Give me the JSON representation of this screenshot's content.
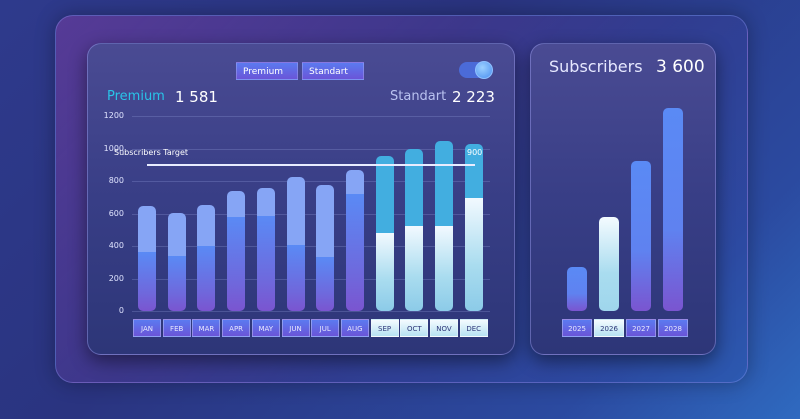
{
  "left_panel": {
    "segment_buttons": [
      "Premium",
      "Standart"
    ],
    "toggle_on": true,
    "premium_label": "Premium",
    "premium_value": "1 581",
    "standart_label": "Standart",
    "standart_value": "2 223",
    "target_label": "Subscribers Target",
    "target_value_label": "900"
  },
  "right_panel": {
    "title": "Subscribers",
    "total": "3 600"
  },
  "colors": {
    "premium_accent": "#29c3e8",
    "bar_blue": "#5a8af5",
    "bar_purple": "#7a55d0",
    "bar_light": "#bfe6f4",
    "bar_cyan": "#42aee0"
  },
  "chart_data": [
    {
      "type": "bar",
      "stacked": true,
      "categories": [
        "JAN",
        "FEB",
        "MAR",
        "APR",
        "MAY",
        "JUN",
        "JUL",
        "AUG",
        "SEP",
        "OCT",
        "NOV",
        "DEC"
      ],
      "highlighted_categories": [
        "SEP",
        "OCT",
        "NOV",
        "DEC"
      ],
      "series": [
        {
          "values": [
            365,
            340,
            400,
            580,
            587,
            407,
            331,
            718,
            478,
            525,
            523,
            697
          ]
        },
        {
          "values": [
            281,
            261,
            250,
            158,
            172,
            415,
            444,
            151,
            477,
            471,
            522,
            331
          ]
        }
      ],
      "yticks": [
        "0",
        "200",
        "400",
        "600",
        "800",
        "1000",
        "1200"
      ],
      "ylim": [
        0,
        1200
      ],
      "grid": true,
      "target_line": 900
    },
    {
      "type": "bar",
      "categories": [
        "2025",
        "2026",
        "2027",
        "2028"
      ],
      "selected_category": "2026",
      "values": [
        1700,
        3600,
        5750,
        7800
      ]
    }
  ]
}
